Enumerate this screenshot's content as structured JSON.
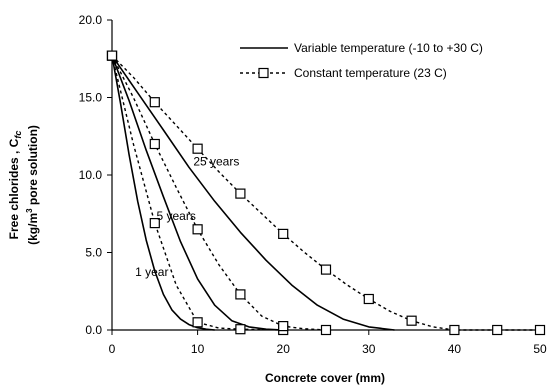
{
  "chart_data": {
    "type": "line",
    "xlabel": "Concrete cover (mm)",
    "ylabel": [
      "Free chlorides , C",
      "fc",
      "(kg/m",
      "3",
      " pore solution)"
    ],
    "xlim": [
      0,
      50
    ],
    "ylim": [
      0,
      20
    ],
    "xticks": [
      0,
      10,
      20,
      30,
      40,
      50
    ],
    "yticks": [
      0,
      5,
      10,
      15,
      20
    ],
    "xtick_labels": [
      "0",
      "10",
      "20",
      "30",
      "40",
      "50"
    ],
    "ytick_labels": [
      "0.0",
      "5.0",
      "10.0",
      "15.0",
      "20.0"
    ],
    "grid": false,
    "legend_position": "top-right",
    "legend": [
      {
        "label": "Variable temperature (-10 to +30 C)",
        "style": "solid"
      },
      {
        "label": "Constant temperature (23 C)",
        "style": "dashed-square"
      }
    ],
    "series": [
      {
        "group": "1 year",
        "style": "solid",
        "x": [
          0,
          1,
          2,
          3,
          4,
          5,
          6,
          7,
          8,
          9,
          10,
          11,
          12
        ],
        "y": [
          17.7,
          14.6,
          11.3,
          8.3,
          5.8,
          3.8,
          2.3,
          1.3,
          0.7,
          0.35,
          0.15,
          0.05,
          0.0
        ]
      },
      {
        "group": "1 year",
        "style": "dashed-square",
        "x": [
          0,
          2.5,
          5,
          7.5,
          10,
          12.5,
          15,
          17.5,
          20
        ],
        "y": [
          17.7,
          12.0,
          6.9,
          2.9,
          0.5,
          0.12,
          0.05,
          0.02,
          0.0
        ],
        "markers_at": [
          0,
          5,
          10,
          15,
          20
        ]
      },
      {
        "group": "5 years",
        "style": "solid",
        "x": [
          0,
          2,
          4,
          6,
          8,
          10,
          12,
          14,
          16,
          18,
          20
        ],
        "y": [
          17.7,
          14.8,
          11.6,
          8.6,
          5.7,
          3.3,
          1.6,
          0.6,
          0.2,
          0.05,
          0.0
        ]
      },
      {
        "group": "5 years",
        "style": "dashed-square",
        "x": [
          0,
          2.5,
          5,
          7.5,
          10,
          12.5,
          15,
          17.5,
          20,
          22.5,
          25
        ],
        "y": [
          17.7,
          15.0,
          12.0,
          9.2,
          6.5,
          4.2,
          2.3,
          0.9,
          0.25,
          0.08,
          0.0
        ],
        "markers_at": [
          0,
          5,
          10,
          15,
          20,
          25
        ]
      },
      {
        "group": "25 years",
        "style": "solid",
        "x": [
          0,
          3,
          6,
          9,
          12,
          15,
          18,
          21,
          24,
          27,
          30,
          33
        ],
        "y": [
          17.7,
          15.3,
          12.9,
          10.5,
          8.3,
          6.3,
          4.5,
          2.9,
          1.6,
          0.7,
          0.2,
          0.0
        ]
      },
      {
        "group": "25 years",
        "style": "dashed-square",
        "x": [
          0,
          2.5,
          5,
          7.5,
          10,
          12.5,
          15,
          17.5,
          20,
          22.5,
          25,
          27.5,
          30,
          32.5,
          35,
          37.5,
          40,
          45,
          50
        ],
        "y": [
          17.7,
          16.3,
          14.7,
          13.2,
          11.7,
          10.2,
          8.8,
          7.5,
          6.2,
          5.0,
          3.9,
          2.9,
          2.0,
          1.2,
          0.6,
          0.2,
          0.0,
          0.0,
          0.0
        ],
        "markers_at": [
          0,
          5,
          10,
          15,
          20,
          25,
          30,
          35,
          40,
          45,
          50
        ]
      }
    ],
    "annotations": [
      {
        "text": "25 years",
        "x": 9.5,
        "y": 10.6
      },
      {
        "text": "5 years",
        "x": 5.2,
        "y": 7.1
      },
      {
        "text": "1 year",
        "x": 2.7,
        "y": 3.5
      }
    ]
  }
}
